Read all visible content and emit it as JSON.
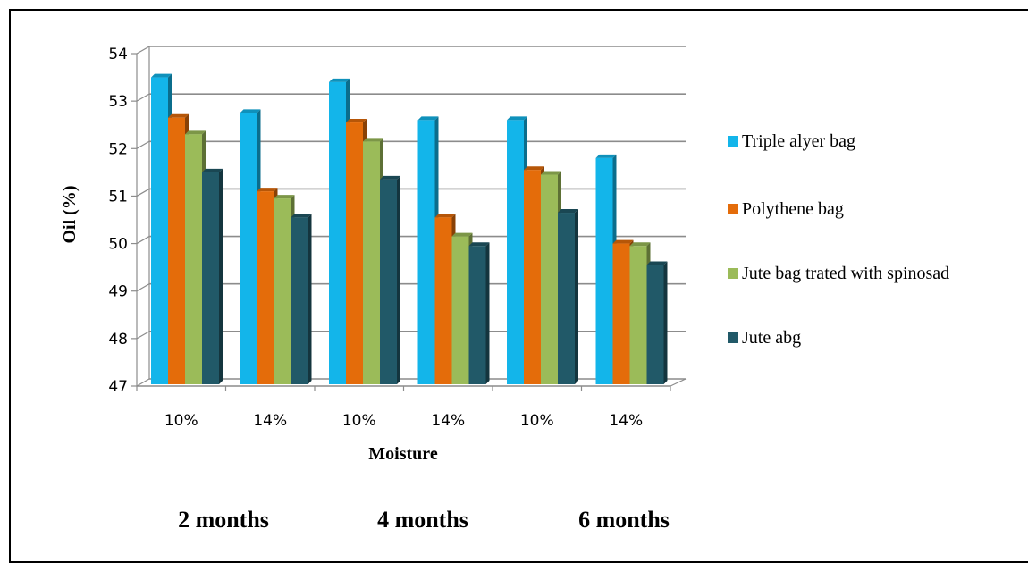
{
  "chart_data": {
    "type": "bar",
    "style": "3d-clustered-column",
    "categories": [
      "10%",
      "14%",
      "10%",
      "14%",
      "10%",
      "14%"
    ],
    "series": [
      {
        "name": "Triple alyer bag",
        "values": [
          53.5,
          52.75,
          53.4,
          52.6,
          52.6,
          51.8
        ],
        "color": "#13b5ea"
      },
      {
        "name": "Polythene bag",
        "values": [
          52.65,
          51.1,
          52.55,
          50.55,
          51.55,
          50.0
        ],
        "color": "#e46c0a"
      },
      {
        "name": "Jute bag trated with spinosad",
        "values": [
          52.3,
          50.95,
          52.15,
          50.15,
          51.45,
          49.95
        ],
        "color": "#9bbb59"
      },
      {
        "name": " Jute abg",
        "values": [
          51.5,
          50.55,
          51.35,
          49.95,
          50.65,
          49.55
        ],
        "color": "#215968"
      }
    ],
    "ylim": [
      47,
      54
    ],
    "yticks": [
      47,
      48,
      49,
      50,
      51,
      52,
      53,
      54
    ],
    "ylabel": "Oil (%)",
    "xlabel": "Moisture",
    "grid": true,
    "legend": "right",
    "group_labels": [
      "2 months",
      "4 months",
      "6 months"
    ]
  }
}
